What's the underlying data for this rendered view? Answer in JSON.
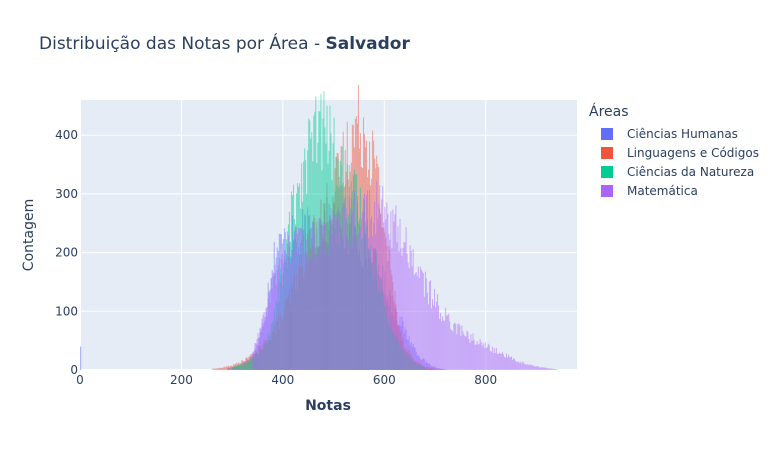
{
  "chart_data": {
    "type": "histogram",
    "title": "Distribuição das Notas por Área - ",
    "title_bold": "Salvador",
    "xlabel": "Notas",
    "ylabel": "Contagem",
    "xlim": [
      0,
      980
    ],
    "ylim": [
      0,
      460
    ],
    "x_ticks": [
      0,
      200,
      400,
      600,
      800
    ],
    "y_ticks": [
      0,
      100,
      200,
      300,
      400
    ],
    "grid": true,
    "barmode": "overlay",
    "legend_title": "Áreas",
    "legend_position": "right",
    "series": [
      {
        "name": "Ciências Humanas",
        "color": "#636efa",
        "x": [
          0,
          290,
          300,
          310,
          320,
          330,
          340,
          350,
          360,
          370,
          380,
          390,
          400,
          410,
          420,
          430,
          440,
          450,
          460,
          470,
          480,
          490,
          500,
          510,
          520,
          530,
          540,
          550,
          560,
          570,
          580,
          590,
          600,
          610,
          620,
          630,
          640,
          650,
          660,
          670,
          680,
          690,
          700,
          710,
          720
        ],
        "y": [
          40,
          3,
          5,
          8,
          12,
          18,
          28,
          45,
          80,
          140,
          190,
          210,
          215,
          220,
          225,
          230,
          235,
          235,
          240,
          245,
          250,
          250,
          245,
          240,
          235,
          230,
          225,
          215,
          205,
          195,
          180,
          165,
          145,
          125,
          105,
          85,
          65,
          50,
          35,
          22,
          14,
          8,
          4,
          2,
          1
        ]
      },
      {
        "name": "Linguagens e Códigos",
        "color": "#ef553b",
        "x": [
          260,
          280,
          300,
          320,
          340,
          360,
          380,
          400,
          420,
          440,
          460,
          480,
          500,
          510,
          520,
          530,
          540,
          550,
          560,
          570,
          580,
          590,
          600,
          610,
          620,
          630,
          640,
          660,
          680,
          700
        ],
        "y": [
          2,
          4,
          8,
          15,
          25,
          40,
          65,
          95,
          140,
          190,
          230,
          265,
          300,
          330,
          360,
          380,
          405,
          420,
          410,
          385,
          350,
          300,
          240,
          180,
          120,
          70,
          40,
          15,
          5,
          2
        ]
      },
      {
        "name": "Ciências da Natureza",
        "color": "#00cc96",
        "x": [
          300,
          320,
          340,
          360,
          380,
          390,
          400,
          410,
          420,
          430,
          440,
          450,
          460,
          470,
          480,
          490,
          500,
          510,
          520,
          530,
          540,
          550,
          560,
          570,
          580,
          590,
          600,
          620,
          640,
          660,
          680
        ],
        "y": [
          5,
          10,
          20,
          40,
          80,
          130,
          180,
          235,
          280,
          320,
          350,
          375,
          395,
          405,
          410,
          395,
          370,
          340,
          320,
          300,
          290,
          275,
          255,
          225,
          190,
          150,
          110,
          60,
          30,
          12,
          4
        ]
      },
      {
        "name": "Matemática",
        "color": "#ab63fa",
        "x": [
          340,
          360,
          380,
          400,
          420,
          440,
          460,
          480,
          500,
          520,
          540,
          560,
          580,
          600,
          620,
          640,
          660,
          680,
          700,
          720,
          740,
          760,
          780,
          800,
          820,
          840,
          860,
          880,
          900,
          920,
          940
        ],
        "y": [
          30,
          80,
          150,
          190,
          210,
          215,
          220,
          230,
          240,
          250,
          260,
          270,
          275,
          265,
          245,
          215,
          180,
          145,
          115,
          90,
          75,
          60,
          50,
          40,
          32,
          24,
          16,
          10,
          6,
          3,
          1
        ]
      }
    ]
  }
}
